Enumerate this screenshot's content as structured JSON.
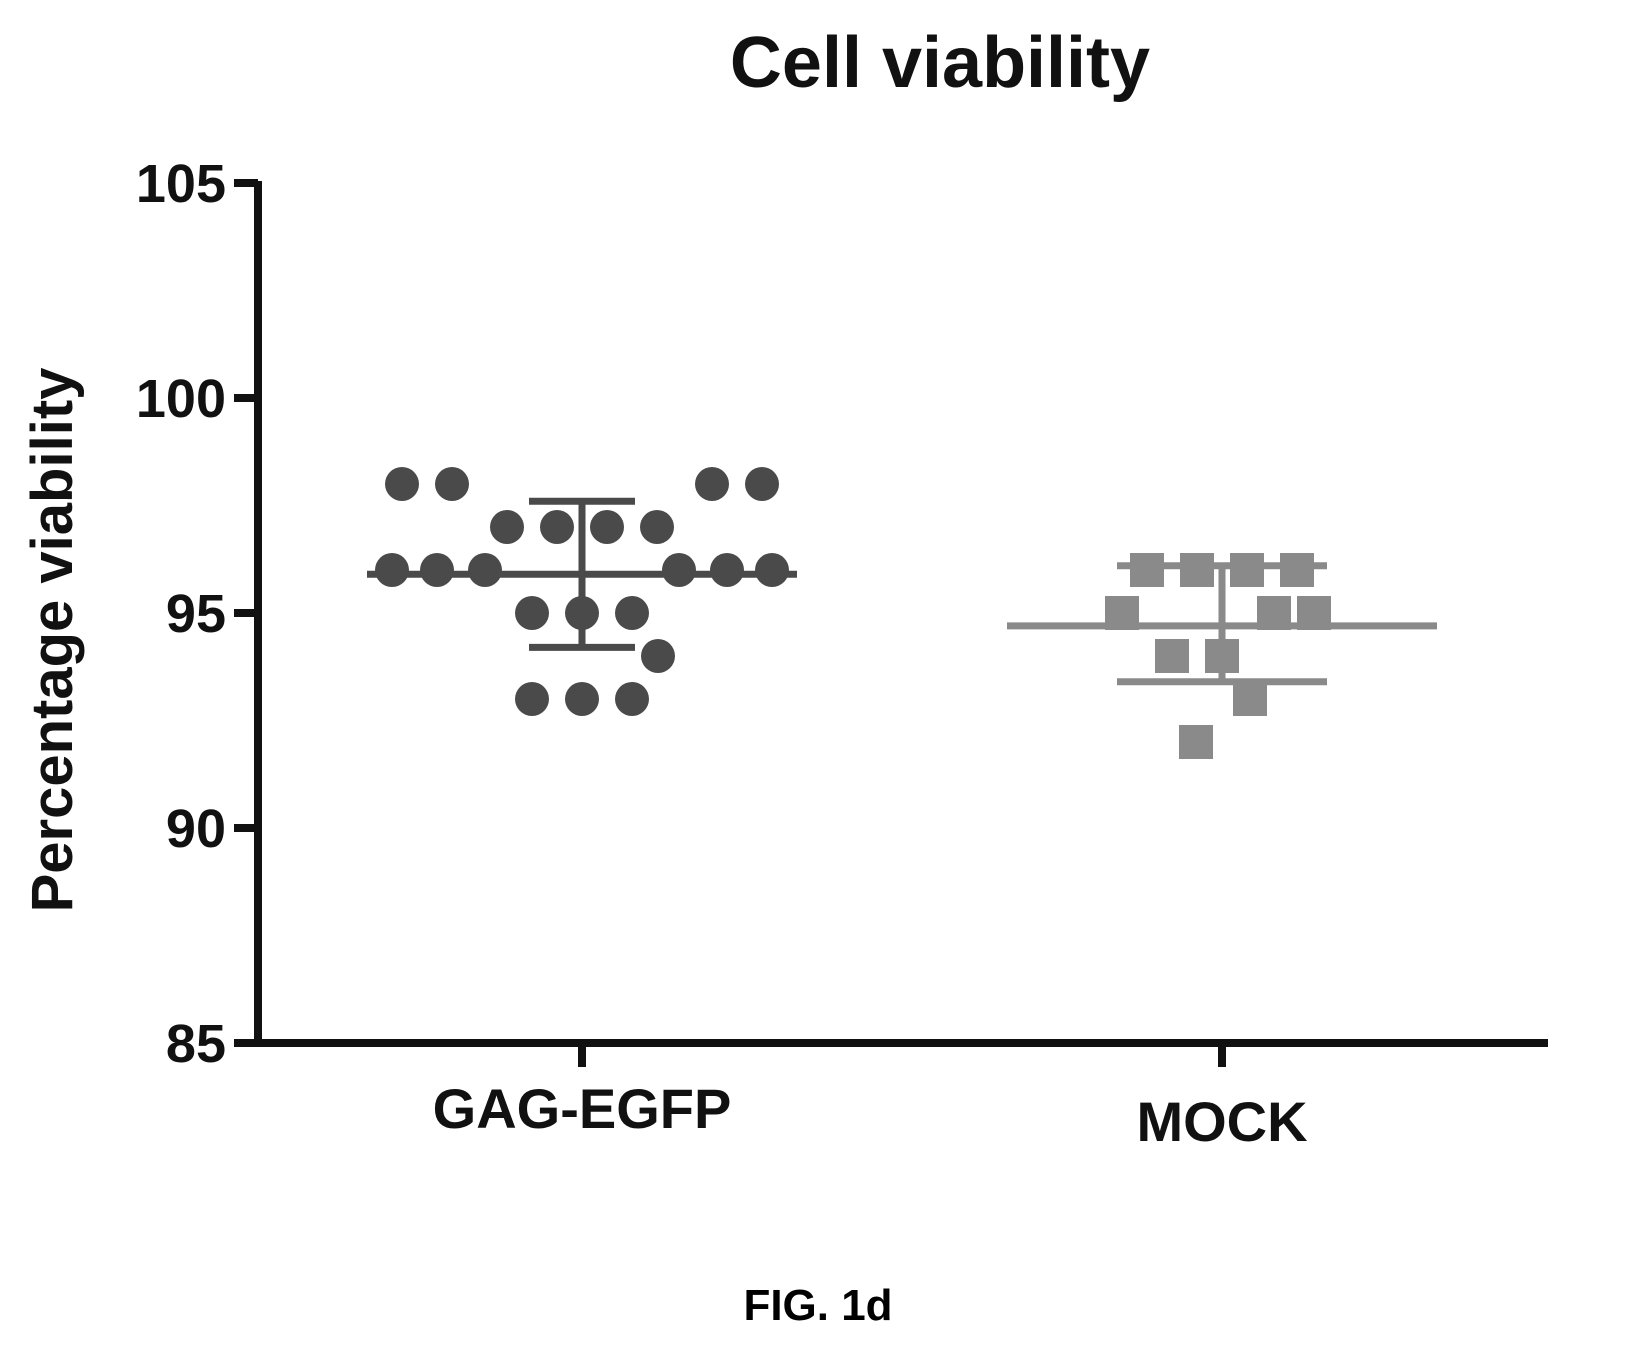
{
  "figure_caption": "FIG. 1d",
  "chart_data": {
    "type": "scatter",
    "title": "Cell viability",
    "xlabel": "",
    "ylabel": "Percentage viability",
    "categories": [
      "GAG-EGFP",
      "MOCK"
    ],
    "ylim": [
      85,
      105
    ],
    "yticks": [
      "85",
      "90",
      "95",
      "100",
      "105"
    ],
    "grid": false,
    "legend": "none",
    "series": [
      {
        "category": "GAG-EGFP",
        "marker": "circle",
        "color": "#4a4a4a",
        "values": [
          98,
          98,
          98,
          98,
          97,
          97,
          97,
          97,
          96,
          96,
          96,
          96,
          96,
          96,
          95,
          95,
          95,
          94,
          93,
          93,
          93
        ],
        "mean": 95.9,
        "error_upper": 97.6,
        "error_lower": 94.2
      },
      {
        "category": "MOCK",
        "marker": "square",
        "color": "#8a8a8a",
        "values": [
          96,
          96,
          96,
          96,
          95,
          95,
          95,
          94,
          94,
          93,
          92
        ],
        "mean": 94.7,
        "error_upper": 96.1,
        "error_lower": 93.4
      }
    ]
  }
}
